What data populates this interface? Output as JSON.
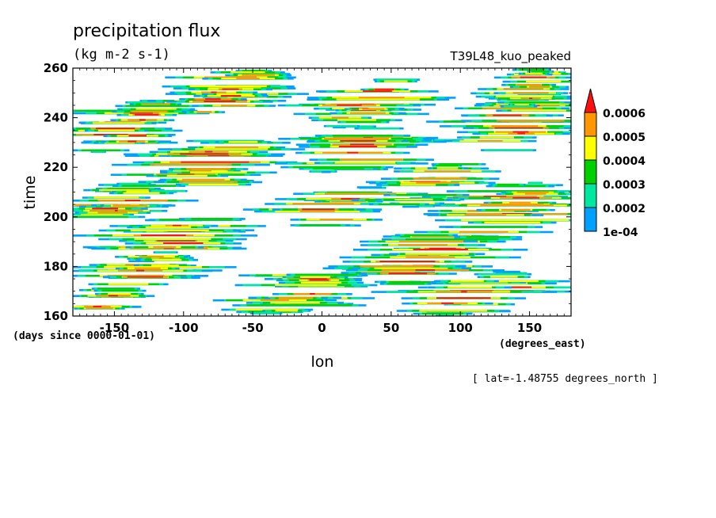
{
  "title": "precipitation flux",
  "units": "(kg m-2 s-1)",
  "case_name": "T39L48_kuo_peaked",
  "annotation": "[ lat=-1.48755 degrees_north ]",
  "chart_data": {
    "type": "heatmap",
    "variable": "precipitation flux",
    "xlabel": "lon",
    "x_units": "(degrees_east)",
    "ylabel": "time",
    "y_units": "(days since 0000-01-01)",
    "xlim": [
      -180,
      180
    ],
    "ylim": [
      160,
      260
    ],
    "x_ticks": [
      -150,
      -100,
      -50,
      0,
      50,
      100,
      150
    ],
    "x_tick_labels": [
      "-150",
      "-100",
      "-50",
      "0",
      "50",
      "100",
      "150"
    ],
    "y_ticks": [
      160,
      180,
      200,
      220,
      240,
      260
    ],
    "y_tick_labels": [
      "160",
      "180",
      "200",
      "220",
      "240",
      "260"
    ],
    "levels": [
      0.0001,
      0.0002,
      0.0003,
      0.0004,
      0.0005,
      0.0006
    ],
    "level_labels": [
      "1e-04",
      "0.0002",
      "0.0003",
      "0.0004",
      "0.0005",
      "0.0006"
    ],
    "level_colors": [
      "#00a0ff",
      "#00e8a0",
      "#00d000",
      "#ffff00",
      "#ff9800",
      "#ff1010"
    ],
    "background_color": "#ffffff",
    "colorbar": "right, triangle on top for values above 0.0006",
    "active_regions": [
      {
        "lon": [
          -180,
          -130
        ],
        "time": [
          160,
          172
        ]
      },
      {
        "lon": [
          -160,
          -60
        ],
        "time": [
          182,
          200
        ]
      },
      {
        "lon": [
          -180,
          -110
        ],
        "time": [
          196,
          214
        ]
      },
      {
        "lon": [
          -130,
          -30
        ],
        "time": [
          210,
          232
        ]
      },
      {
        "lon": [
          -180,
          -90
        ],
        "time": [
          226,
          248
        ]
      },
      {
        "lon": [
          -110,
          -20
        ],
        "time": [
          240,
          260
        ]
      },
      {
        "lon": [
          -60,
          30
        ],
        "time": [
          160,
          180
        ]
      },
      {
        "lon": [
          -40,
          60
        ],
        "time": [
          196,
          212
        ]
      },
      {
        "lon": [
          -20,
          80
        ],
        "time": [
          218,
          236
        ]
      },
      {
        "lon": [
          -10,
          70
        ],
        "time": [
          236,
          256
        ]
      },
      {
        "lon": [
          20,
          120
        ],
        "time": [
          172,
          196
        ]
      },
      {
        "lon": [
          60,
          160
        ],
        "time": [
          160,
          178
        ]
      },
      {
        "lon": [
          80,
          180
        ],
        "time": [
          190,
          214
        ]
      },
      {
        "lon": [
          100,
          180
        ],
        "time": [
          226,
          250
        ]
      },
      {
        "lon": [
          120,
          180
        ],
        "time": [
          244,
          260
        ]
      },
      {
        "lon": [
          40,
          120
        ],
        "time": [
          204,
          222
        ]
      },
      {
        "lon": [
          -170,
          -80
        ],
        "time": [
          172,
          186
        ]
      }
    ]
  }
}
